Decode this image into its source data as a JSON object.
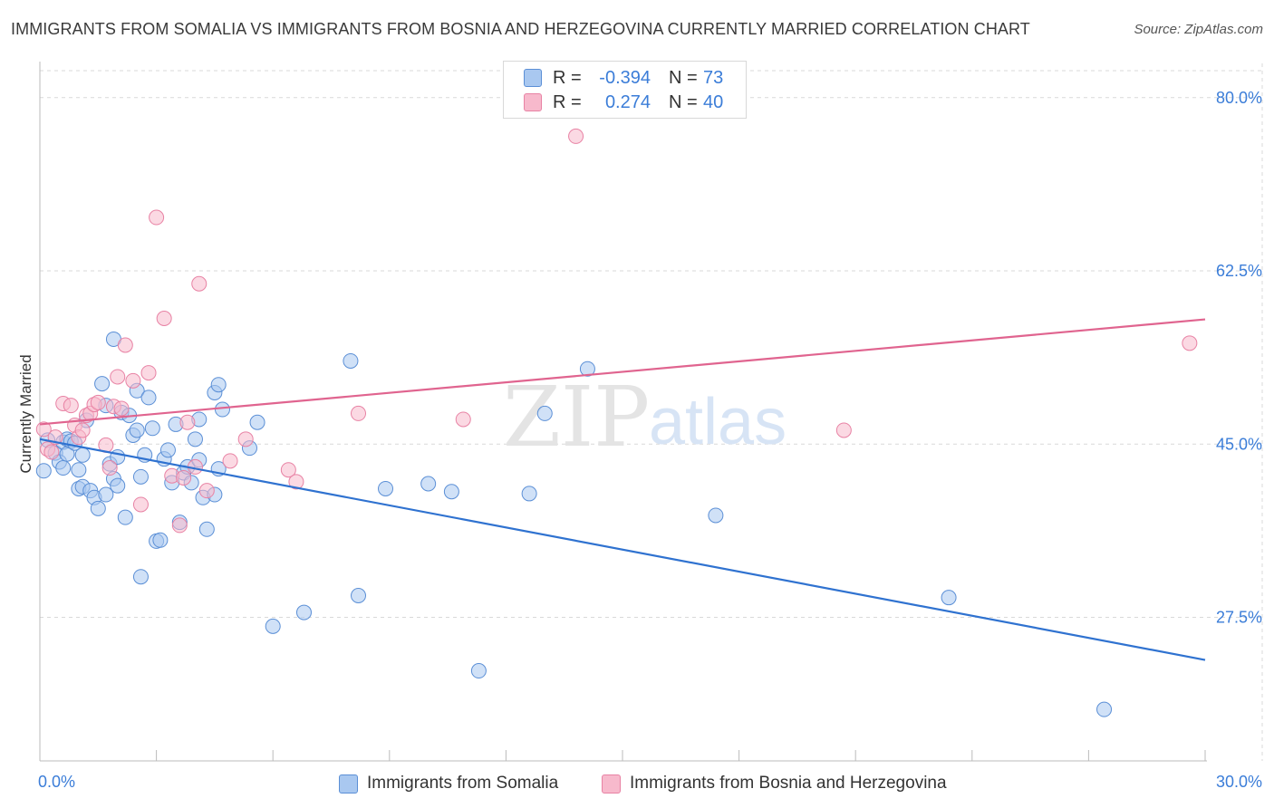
{
  "title": "IMMIGRANTS FROM SOMALIA VS IMMIGRANTS FROM BOSNIA AND HERZEGOVINA CURRENTLY MARRIED CORRELATION CHART",
  "source": "Source: ZipAtlas.com",
  "watermark": {
    "zip": "ZIP",
    "atlas": "atlas"
  },
  "colors": {
    "somalia_fill": "#a9c8f0",
    "somalia_stroke": "#5b8fd6",
    "somalia_line": "#2f72d0",
    "bosnia_fill": "#f7b9cc",
    "bosnia_stroke": "#e882a4",
    "bosnia_line": "#e0648f",
    "axis_label": "#3b7dd8",
    "grid": "#d9d9d9"
  },
  "legend": {
    "rows": [
      {
        "r_label": "R =",
        "r_value": "-0.394",
        "n_label": "N =",
        "n_value": "73"
      },
      {
        "r_label": "R =",
        "r_value": "0.274",
        "n_label": "N =",
        "n_value": "40"
      }
    ]
  },
  "chart_data": {
    "type": "scatter",
    "title": "IMMIGRANTS FROM SOMALIA VS IMMIGRANTS FROM BOSNIA AND HERZEGOVINA CURRENTLY MARRIED CORRELATION CHART",
    "xlabel": "",
    "ylabel": "Currently Married",
    "xlim": [
      0,
      30
    ],
    "ylim": [
      13,
      83
    ],
    "x_tick_labels": [
      {
        "value": 0,
        "label": "0.0%"
      },
      {
        "value": 30,
        "label": "30.0%"
      }
    ],
    "y_tick_labels": [
      {
        "value": 80,
        "label": "80.0%"
      },
      {
        "value": 62.5,
        "label": "62.5%"
      },
      {
        "value": 45,
        "label": "45.0%"
      },
      {
        "value": 27.5,
        "label": "27.5%"
      }
    ],
    "x_minor_ticks": [
      0,
      3,
      6,
      9,
      12,
      15,
      18,
      21,
      24,
      27,
      30
    ],
    "series": [
      {
        "name": "Immigrants from Somalia",
        "r": -0.394,
        "n": 73,
        "trend": {
          "x": [
            0,
            30
          ],
          "y": [
            45.5,
            23.2
          ]
        },
        "points": [
          [
            0.1,
            42.3
          ],
          [
            0.2,
            45.4
          ],
          [
            0.4,
            44.1
          ],
          [
            0.5,
            43.2
          ],
          [
            0.6,
            42.6
          ],
          [
            0.6,
            45.2
          ],
          [
            0.7,
            45.5
          ],
          [
            0.7,
            44.0
          ],
          [
            0.8,
            45.3
          ],
          [
            0.9,
            45.1
          ],
          [
            1.0,
            40.5
          ],
          [
            1.0,
            42.4
          ],
          [
            1.1,
            43.9
          ],
          [
            1.1,
            40.7
          ],
          [
            1.2,
            47.4
          ],
          [
            1.3,
            40.3
          ],
          [
            1.4,
            39.6
          ],
          [
            1.5,
            38.5
          ],
          [
            1.6,
            51.1
          ],
          [
            1.7,
            48.9
          ],
          [
            1.7,
            39.9
          ],
          [
            1.8,
            43.0
          ],
          [
            1.9,
            41.5
          ],
          [
            1.9,
            55.6
          ],
          [
            2.0,
            43.7
          ],
          [
            2.0,
            40.8
          ],
          [
            2.1,
            48.2
          ],
          [
            2.2,
            37.6
          ],
          [
            2.3,
            47.9
          ],
          [
            2.4,
            45.9
          ],
          [
            2.5,
            46.4
          ],
          [
            2.5,
            50.4
          ],
          [
            2.6,
            31.6
          ],
          [
            2.6,
            41.7
          ],
          [
            2.7,
            43.9
          ],
          [
            2.8,
            49.7
          ],
          [
            2.9,
            46.6
          ],
          [
            3.0,
            35.2
          ],
          [
            3.1,
            35.3
          ],
          [
            3.2,
            43.5
          ],
          [
            3.3,
            44.4
          ],
          [
            3.4,
            41.1
          ],
          [
            3.5,
            47.0
          ],
          [
            3.6,
            37.1
          ],
          [
            3.7,
            42.1
          ],
          [
            3.8,
            42.7
          ],
          [
            3.9,
            41.1
          ],
          [
            4.0,
            45.5
          ],
          [
            4.1,
            47.5
          ],
          [
            4.1,
            43.4
          ],
          [
            4.2,
            39.6
          ],
          [
            4.3,
            36.4
          ],
          [
            4.5,
            50.2
          ],
          [
            4.5,
            39.9
          ],
          [
            4.6,
            51.0
          ],
          [
            4.6,
            42.5
          ],
          [
            4.7,
            48.5
          ],
          [
            5.4,
            44.6
          ],
          [
            5.6,
            47.2
          ],
          [
            6.0,
            26.6
          ],
          [
            6.8,
            28.0
          ],
          [
            8.0,
            53.4
          ],
          [
            8.2,
            29.7
          ],
          [
            8.9,
            40.5
          ],
          [
            10.0,
            41.0
          ],
          [
            10.6,
            40.2
          ],
          [
            11.3,
            22.1
          ],
          [
            12.6,
            40.0
          ],
          [
            13.0,
            48.1
          ],
          [
            14.1,
            52.6
          ],
          [
            17.4,
            37.8
          ],
          [
            23.4,
            29.5
          ],
          [
            27.4,
            18.2
          ]
        ]
      },
      {
        "name": "Immigrants from Bosnia and Herzegovina",
        "r": 0.274,
        "n": 40,
        "trend": {
          "x": [
            0,
            30
          ],
          "y": [
            47.0,
            57.6
          ]
        },
        "points": [
          [
            0.1,
            46.5
          ],
          [
            0.2,
            44.5
          ],
          [
            0.3,
            44.2
          ],
          [
            0.4,
            45.7
          ],
          [
            0.6,
            49.1
          ],
          [
            0.8,
            48.9
          ],
          [
            0.9,
            46.9
          ],
          [
            1.0,
            45.7
          ],
          [
            1.1,
            46.4
          ],
          [
            1.2,
            47.9
          ],
          [
            1.3,
            48.1
          ],
          [
            1.4,
            49.0
          ],
          [
            1.5,
            49.2
          ],
          [
            1.7,
            44.9
          ],
          [
            1.8,
            42.6
          ],
          [
            1.9,
            48.8
          ],
          [
            2.0,
            51.8
          ],
          [
            2.1,
            48.6
          ],
          [
            2.2,
            55.0
          ],
          [
            2.4,
            51.4
          ],
          [
            2.6,
            38.9
          ],
          [
            2.8,
            52.2
          ],
          [
            3.0,
            67.9
          ],
          [
            3.2,
            57.7
          ],
          [
            3.4,
            41.8
          ],
          [
            3.6,
            36.8
          ],
          [
            3.7,
            41.6
          ],
          [
            3.8,
            47.2
          ],
          [
            4.0,
            42.7
          ],
          [
            4.1,
            61.2
          ],
          [
            4.3,
            40.3
          ],
          [
            4.9,
            43.3
          ],
          [
            5.3,
            45.5
          ],
          [
            6.4,
            42.4
          ],
          [
            6.6,
            41.2
          ],
          [
            8.2,
            48.1
          ],
          [
            10.9,
            47.5
          ],
          [
            13.8,
            76.1
          ],
          [
            20.7,
            46.4
          ],
          [
            29.6,
            55.2
          ]
        ]
      }
    ],
    "legend_position": "top-center"
  },
  "bottom_legend": [
    {
      "label": "Immigrants from Somalia"
    },
    {
      "label": "Immigrants from Bosnia and Herzegovina"
    }
  ]
}
